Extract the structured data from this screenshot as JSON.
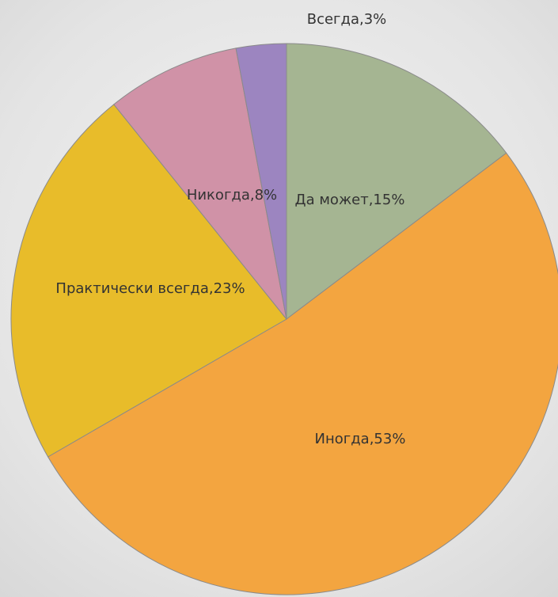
{
  "chart_data": {
    "type": "pie",
    "values": [
      15,
      53,
      23,
      8,
      3
    ],
    "value_labels": [
      "Да может,15%",
      "Иногда,53%",
      "Практически всегда,23%",
      "Никогда,8%",
      "Всегда,3%"
    ],
    "colors": [
      "#a5b592",
      "#f3a540",
      "#e8bc2a",
      "#d092a7",
      "#9c85c0"
    ]
  }
}
